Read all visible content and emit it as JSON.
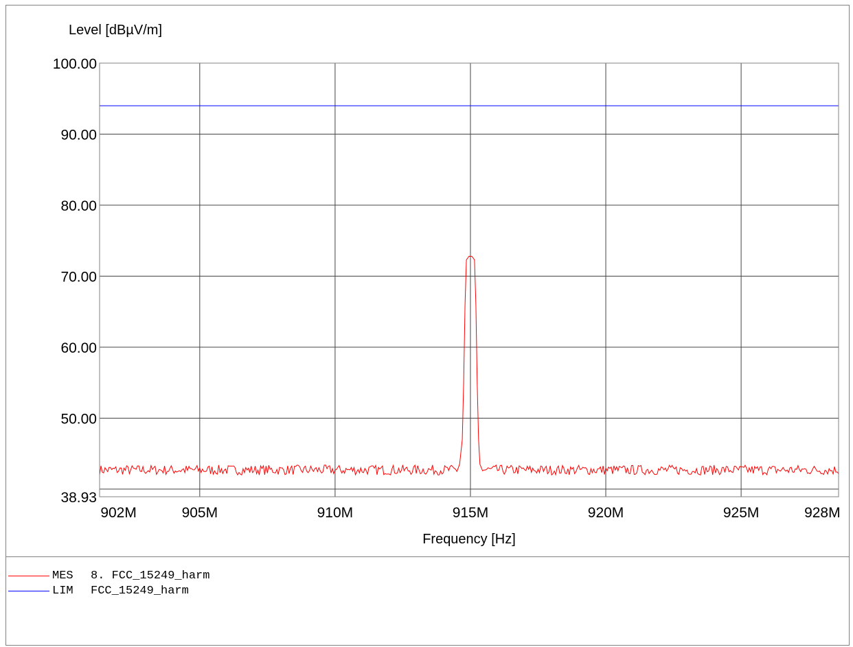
{
  "chart_data": {
    "type": "line",
    "ylabel": "Level [dBµV/m]",
    "xlabel": "Frequency [Hz]",
    "xlim": [
      901.3,
      928.6
    ],
    "ylim": [
      38.93,
      100.0
    ],
    "x_ticks": [
      {
        "value": 902,
        "label": "902M"
      },
      {
        "value": 905,
        "label": "905M"
      },
      {
        "value": 910,
        "label": "910M"
      },
      {
        "value": 915,
        "label": "915M"
      },
      {
        "value": 920,
        "label": "920M"
      },
      {
        "value": 925,
        "label": "925M"
      },
      {
        "value": 928,
        "label": "928M"
      }
    ],
    "x_grid": [
      905,
      910,
      915,
      920,
      925
    ],
    "y_ticks": [
      {
        "value": 100.0,
        "label": "100.00"
      },
      {
        "value": 90.0,
        "label": "90.00"
      },
      {
        "value": 80.0,
        "label": "80.00"
      },
      {
        "value": 70.0,
        "label": "70.00"
      },
      {
        "value": 60.0,
        "label": "60.00"
      },
      {
        "value": 50.0,
        "label": "50.00"
      },
      {
        "value": 38.93,
        "label": "38.93"
      }
    ],
    "y_grid": [
      100,
      90,
      80,
      70,
      60,
      50,
      40
    ],
    "grid": true,
    "series": [
      {
        "name": "MES",
        "color": "#ff0000",
        "noise_floor": 42.7,
        "points": [
          [
            901.3,
            42.8
          ],
          [
            914.4,
            42.8
          ],
          [
            914.6,
            43.5
          ],
          [
            914.7,
            47.0
          ],
          [
            914.75,
            55.0
          ],
          [
            914.8,
            66.0
          ],
          [
            914.85,
            72.3
          ],
          [
            914.95,
            72.8
          ],
          [
            915.05,
            72.8
          ],
          [
            915.15,
            72.3
          ],
          [
            915.2,
            66.0
          ],
          [
            915.25,
            55.0
          ],
          [
            915.3,
            47.0
          ],
          [
            915.35,
            43.5
          ],
          [
            915.5,
            42.8
          ],
          [
            928.6,
            42.7
          ]
        ]
      },
      {
        "name": "LIM",
        "color": "#0000ff",
        "points": [
          [
            901.3,
            94.0
          ],
          [
            928.6,
            94.0
          ]
        ]
      }
    ]
  },
  "legend": [
    {
      "tag": "MES",
      "text": "8. FCC_15249_harm",
      "color": "#ff0000"
    },
    {
      "tag": "LIM",
      "text": "FCC_15249_harm",
      "color": "#0000ff"
    }
  ]
}
